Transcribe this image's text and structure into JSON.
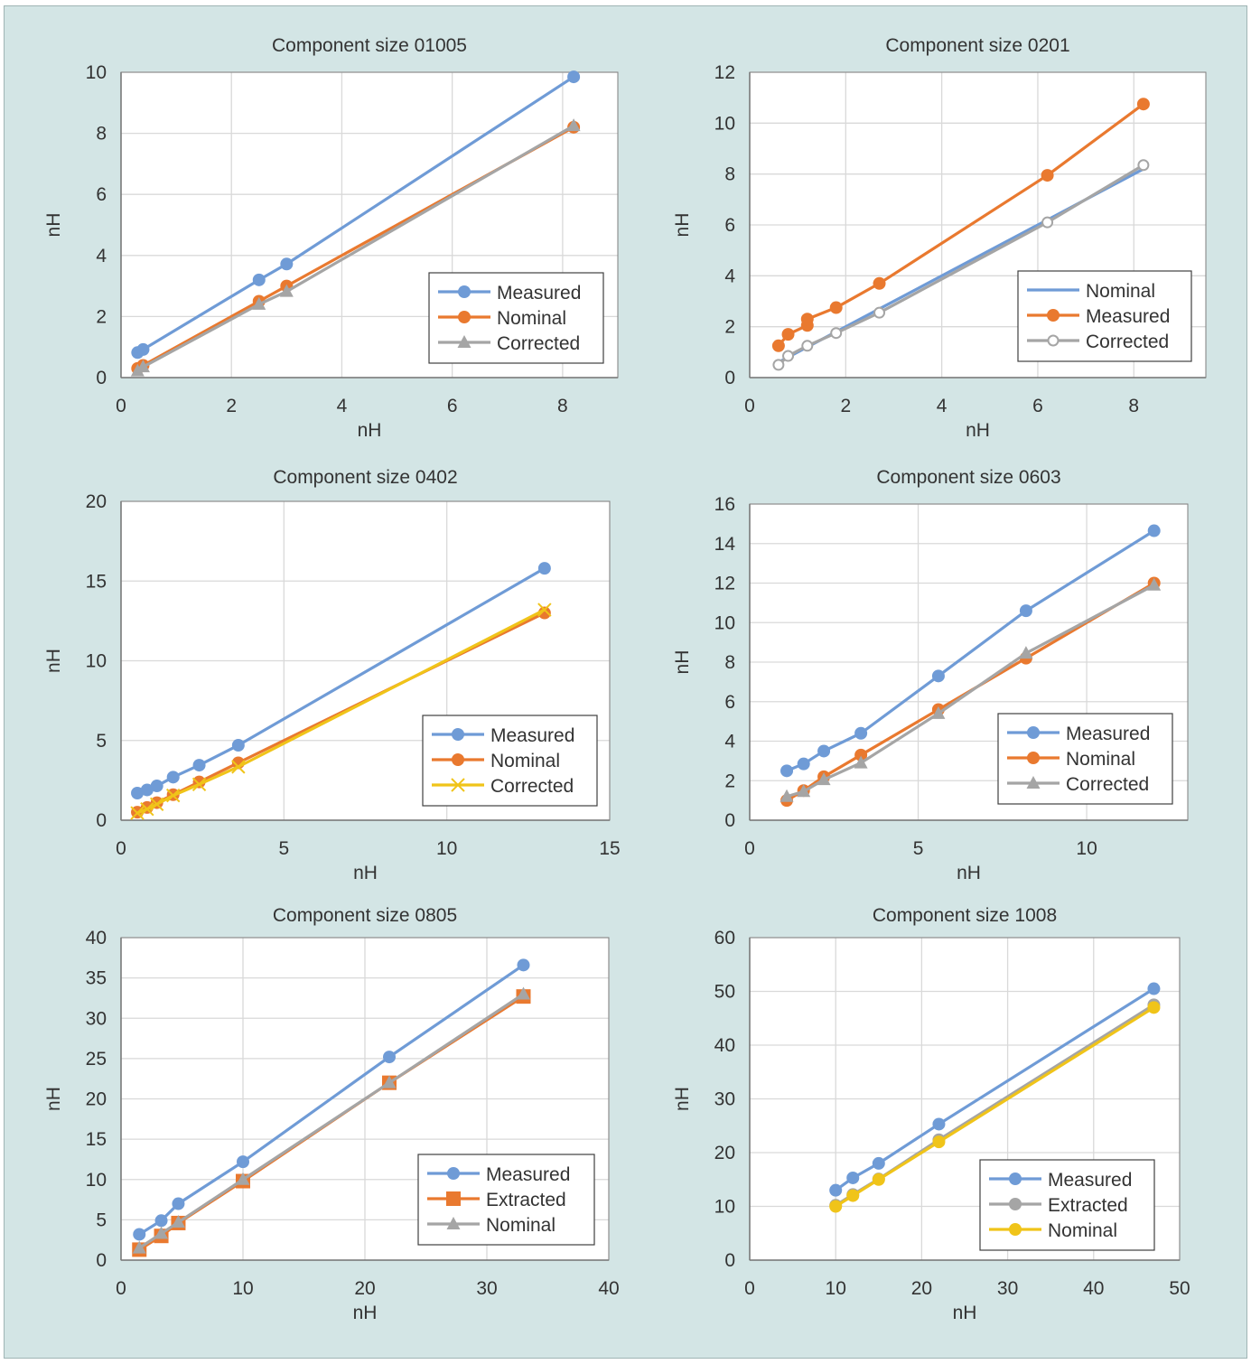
{
  "chart_data": [
    {
      "type": "line",
      "title": "Component size 01005",
      "xlabel": "nH",
      "ylabel": "nH",
      "xlim": [
        0,
        9
      ],
      "ylim": [
        0,
        10
      ],
      "xticks": [
        0,
        2,
        4,
        6,
        8
      ],
      "yticks": [
        0,
        2,
        4,
        6,
        8,
        10
      ],
      "grid": true,
      "legend_position": "bottom-right",
      "series": [
        {
          "name": "Measured",
          "color": "#6f9bd6",
          "marker": "circle",
          "points": [
            [
              0.3,
              0.82
            ],
            [
              0.4,
              0.92
            ],
            [
              2.5,
              3.2
            ],
            [
              3.0,
              3.72
            ],
            [
              8.2,
              9.85
            ]
          ]
        },
        {
          "name": "Nominal",
          "color": "#e9792f",
          "marker": "circle",
          "points": [
            [
              0.3,
              0.3
            ],
            [
              0.4,
              0.4
            ],
            [
              2.5,
              2.5
            ],
            [
              3.0,
              3.0
            ],
            [
              8.2,
              8.2
            ]
          ]
        },
        {
          "name": "Corrected",
          "color": "#a5a5a5",
          "marker": "triangle",
          "points": [
            [
              0.3,
              0.22
            ],
            [
              0.4,
              0.35
            ],
            [
              2.5,
              2.4
            ],
            [
              3.0,
              2.82
            ],
            [
              8.2,
              8.25
            ]
          ]
        }
      ]
    },
    {
      "type": "line",
      "title": "Component size 0201",
      "xlabel": "nH",
      "ylabel": "nH",
      "xlim": [
        0,
        9.5
      ],
      "ylim": [
        0,
        12
      ],
      "xticks": [
        0,
        2,
        4,
        6,
        8
      ],
      "yticks": [
        0,
        2,
        4,
        6,
        8,
        10,
        12
      ],
      "grid": true,
      "legend_position": "bottom-right",
      "series": [
        {
          "name": "Nominal",
          "color": "#6f9bd6",
          "marker": "none",
          "points": [
            [
              0.6,
              0.6
            ],
            [
              0.8,
              0.8
            ],
            [
              1.2,
              1.2
            ],
            [
              1.8,
              1.8
            ],
            [
              2.7,
              2.7
            ],
            [
              6.2,
              6.2
            ],
            [
              8.2,
              8.2
            ]
          ]
        },
        {
          "name": "Measured",
          "color": "#e9792f",
          "marker": "circle",
          "points": [
            [
              0.6,
              1.25
            ],
            [
              0.8,
              1.7
            ],
            [
              1.2,
              2.05
            ],
            [
              1.2,
              2.3
            ],
            [
              1.8,
              2.75
            ],
            [
              2.7,
              3.7
            ],
            [
              6.2,
              7.95
            ],
            [
              8.2,
              10.75
            ]
          ]
        },
        {
          "name": "Corrected",
          "color": "#a5a5a5",
          "marker": "open-circle",
          "points": [
            [
              0.6,
              0.5
            ],
            [
              0.8,
              0.85
            ],
            [
              1.2,
              1.25
            ],
            [
              1.8,
              1.75
            ],
            [
              2.7,
              2.55
            ],
            [
              6.2,
              6.1
            ],
            [
              8.2,
              8.35
            ]
          ]
        }
      ]
    },
    {
      "type": "line",
      "title": "Component size 0402",
      "xlabel": "nH",
      "ylabel": "nH",
      "xlim": [
        0,
        15
      ],
      "ylim": [
        0,
        20
      ],
      "xticks": [
        0,
        5,
        10,
        15
      ],
      "yticks": [
        0,
        5,
        10,
        15,
        20
      ],
      "grid": true,
      "legend_position": "bottom-right",
      "series": [
        {
          "name": "Measured",
          "color": "#6f9bd6",
          "marker": "circle",
          "points": [
            [
              0.5,
              1.7
            ],
            [
              0.8,
              1.9
            ],
            [
              1.1,
              2.15
            ],
            [
              1.6,
              2.7
            ],
            [
              2.4,
              3.45
            ],
            [
              3.6,
              4.7
            ],
            [
              13.0,
              15.8
            ]
          ]
        },
        {
          "name": "Nominal",
          "color": "#e9792f",
          "marker": "circle",
          "points": [
            [
              0.5,
              0.5
            ],
            [
              0.8,
              0.8
            ],
            [
              1.1,
              1.1
            ],
            [
              1.6,
              1.6
            ],
            [
              2.4,
              2.4
            ],
            [
              3.6,
              3.6
            ],
            [
              13.0,
              13.0
            ]
          ]
        },
        {
          "name": "Corrected",
          "color": "#f0c419",
          "marker": "x",
          "points": [
            [
              0.5,
              0.45
            ],
            [
              0.8,
              0.7
            ],
            [
              1.1,
              1.0
            ],
            [
              1.6,
              1.55
            ],
            [
              2.4,
              2.25
            ],
            [
              3.6,
              3.35
            ],
            [
              13.0,
              13.2
            ]
          ]
        }
      ]
    },
    {
      "type": "line",
      "title": "Component size 0603",
      "xlabel": "nH",
      "ylabel": "nH",
      "xlim": [
        0,
        13
      ],
      "ylim": [
        0,
        16
      ],
      "xticks": [
        0,
        5,
        10
      ],
      "yticks": [
        0,
        2,
        4,
        6,
        8,
        10,
        12,
        14,
        16
      ],
      "grid": true,
      "legend_position": "bottom-right",
      "series": [
        {
          "name": "Measured",
          "color": "#6f9bd6",
          "marker": "circle",
          "points": [
            [
              1.1,
              2.5
            ],
            [
              1.6,
              2.85
            ],
            [
              2.2,
              3.5
            ],
            [
              3.3,
              4.4
            ],
            [
              5.6,
              7.3
            ],
            [
              8.2,
              10.6
            ],
            [
              12.0,
              14.65
            ]
          ]
        },
        {
          "name": "Nominal",
          "color": "#e9792f",
          "marker": "circle",
          "points": [
            [
              1.1,
              1.0
            ],
            [
              1.6,
              1.5
            ],
            [
              2.2,
              2.2
            ],
            [
              3.3,
              3.3
            ],
            [
              5.6,
              5.6
            ],
            [
              8.2,
              8.2
            ],
            [
              12.0,
              12.0
            ]
          ]
        },
        {
          "name": "Corrected",
          "color": "#a5a5a5",
          "marker": "triangle",
          "points": [
            [
              1.1,
              1.2
            ],
            [
              1.6,
              1.45
            ],
            [
              2.2,
              2.05
            ],
            [
              3.3,
              2.9
            ],
            [
              5.6,
              5.4
            ],
            [
              8.2,
              8.45
            ],
            [
              12.0,
              11.9
            ]
          ]
        }
      ]
    },
    {
      "type": "line",
      "title": "Component size 0805",
      "xlabel": "nH",
      "ylabel": "nH",
      "xlim": [
        0,
        40
      ],
      "ylim": [
        0,
        40
      ],
      "xticks": [
        0,
        10,
        20,
        30,
        40
      ],
      "yticks": [
        0,
        5,
        10,
        15,
        20,
        25,
        30,
        35,
        40
      ],
      "grid": true,
      "legend_position": "bottom-right",
      "series": [
        {
          "name": "Measured",
          "color": "#6f9bd6",
          "marker": "circle",
          "points": [
            [
              1.5,
              3.2
            ],
            [
              3.3,
              4.9
            ],
            [
              4.7,
              7.0
            ],
            [
              10.0,
              12.2
            ],
            [
              22.0,
              25.2
            ],
            [
              33.0,
              36.6
            ]
          ]
        },
        {
          "name": "Extracted",
          "color": "#e9792f",
          "marker": "square",
          "points": [
            [
              1.5,
              1.3
            ],
            [
              3.3,
              3.0
            ],
            [
              4.7,
              4.6
            ],
            [
              10.0,
              9.8
            ],
            [
              22.0,
              22.0
            ],
            [
              33.0,
              32.7
            ]
          ]
        },
        {
          "name": "Nominal",
          "color": "#a5a5a5",
          "marker": "triangle",
          "points": [
            [
              1.5,
              1.5
            ],
            [
              3.3,
              3.3
            ],
            [
              4.7,
              4.7
            ],
            [
              10.0,
              10.0
            ],
            [
              22.0,
              22.0
            ],
            [
              33.0,
              33.0
            ]
          ]
        }
      ]
    },
    {
      "type": "line",
      "title": "Component size 1008",
      "xlabel": "nH",
      "ylabel": "nH",
      "xlim": [
        0,
        50
      ],
      "ylim": [
        0,
        60
      ],
      "xticks": [
        0,
        10,
        20,
        30,
        40,
        50
      ],
      "yticks": [
        0,
        10,
        20,
        30,
        40,
        50,
        60
      ],
      "grid": true,
      "legend_position": "bottom-right",
      "series": [
        {
          "name": "Measured",
          "color": "#6f9bd6",
          "marker": "circle",
          "points": [
            [
              10.0,
              13.0
            ],
            [
              12.0,
              15.3
            ],
            [
              15.0,
              18.0
            ],
            [
              22.0,
              25.3
            ],
            [
              47.0,
              50.5
            ]
          ]
        },
        {
          "name": "Extracted",
          "color": "#a5a5a5",
          "marker": "circle",
          "points": [
            [
              10.0,
              10.2
            ],
            [
              12.0,
              12.2
            ],
            [
              15.0,
              15.1
            ],
            [
              22.0,
              22.4
            ],
            [
              47.0,
              47.5
            ]
          ]
        },
        {
          "name": "Nominal",
          "color": "#f0c419",
          "marker": "circle",
          "points": [
            [
              10.0,
              10.0
            ],
            [
              12.0,
              12.0
            ],
            [
              15.0,
              15.0
            ],
            [
              22.0,
              22.0
            ],
            [
              47.0,
              47.0
            ]
          ]
        }
      ]
    }
  ]
}
